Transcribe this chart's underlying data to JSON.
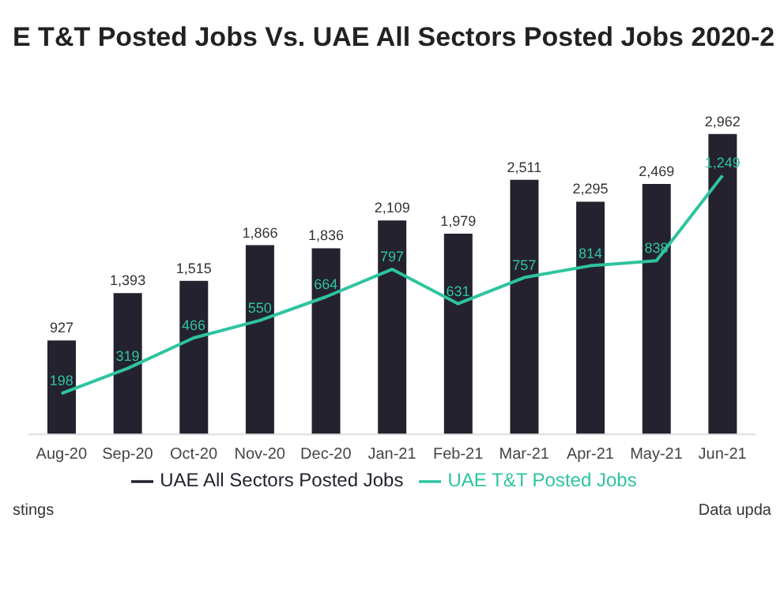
{
  "chart_data": {
    "type": "bar",
    "title": "E T&T Posted Jobs Vs. UAE All Sectors Posted Jobs 2020-2",
    "categories": [
      "Aug-20",
      "Sep-20",
      "Oct-20",
      "Nov-20",
      "Dec-20",
      "Jan-21",
      "Feb-21",
      "Mar-21",
      "Apr-21",
      "May-21",
      "Jun-21"
    ],
    "series": [
      {
        "name": "UAE All Sectors Posted Jobs",
        "color": "#25222f",
        "values": [
          927,
          1393,
          1515,
          1866,
          1836,
          2109,
          1979,
          2511,
          2295,
          2469,
          2962
        ],
        "value_labels": [
          "927",
          "1,393",
          "1,515",
          "1,866",
          "1,836",
          "2,109",
          "1,979",
          "2,511",
          "2,295",
          "2,469",
          "2,962"
        ]
      },
      {
        "name": "UAE T&T Posted Jobs",
        "type": "line",
        "axis": "y2",
        "color": "#2ec4a0",
        "values": [
          198,
          319,
          466,
          550,
          664,
          797,
          631,
          757,
          814,
          838,
          1249
        ],
        "value_labels": [
          "198",
          "319",
          "466",
          "550",
          "664",
          "797",
          "631",
          "757",
          "814",
          "838",
          "1,249"
        ]
      }
    ],
    "legend": "bottom",
    "marker": "none",
    "tick_labels": "x",
    "annotations": [
      "stings",
      "Data upda"
    ]
  }
}
